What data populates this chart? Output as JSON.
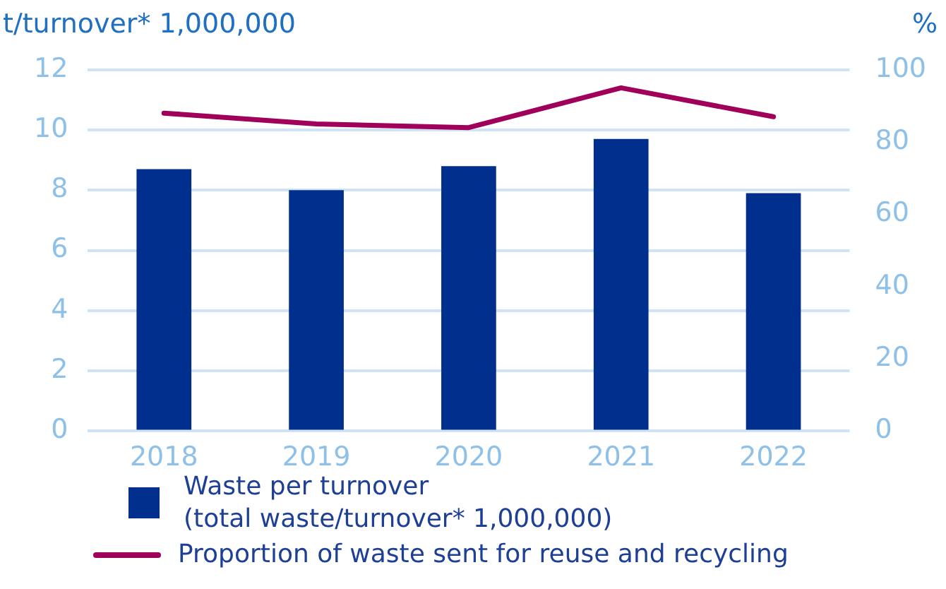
{
  "chart_data": {
    "type": "bar",
    "ylabel": "t/turnover* 1,000,000",
    "y2label": "%",
    "categories": [
      "2018",
      "2019",
      "2020",
      "2021",
      "2022"
    ],
    "series": [
      {
        "name": "Waste per turnover\n(total waste/turnover* 1,000,000)",
        "color": "#002f8e",
        "values": [
          8.7,
          8.0,
          8.8,
          9.7,
          7.9
        ]
      },
      {
        "name": "Proportion of waste sent for reuse and recycling",
        "type": "line",
        "axis": "y2",
        "color": "#a0005a",
        "values": [
          88,
          85,
          84,
          95,
          87
        ]
      }
    ],
    "ylim": [
      0,
      12
    ],
    "yticks": [
      0,
      2,
      4,
      6,
      8,
      10,
      12
    ],
    "y2lim": [
      0,
      100
    ],
    "y2ticks": [
      0,
      20,
      40,
      60,
      80,
      100
    ],
    "grid": "y",
    "legend": "bottom",
    "marker": "none"
  }
}
